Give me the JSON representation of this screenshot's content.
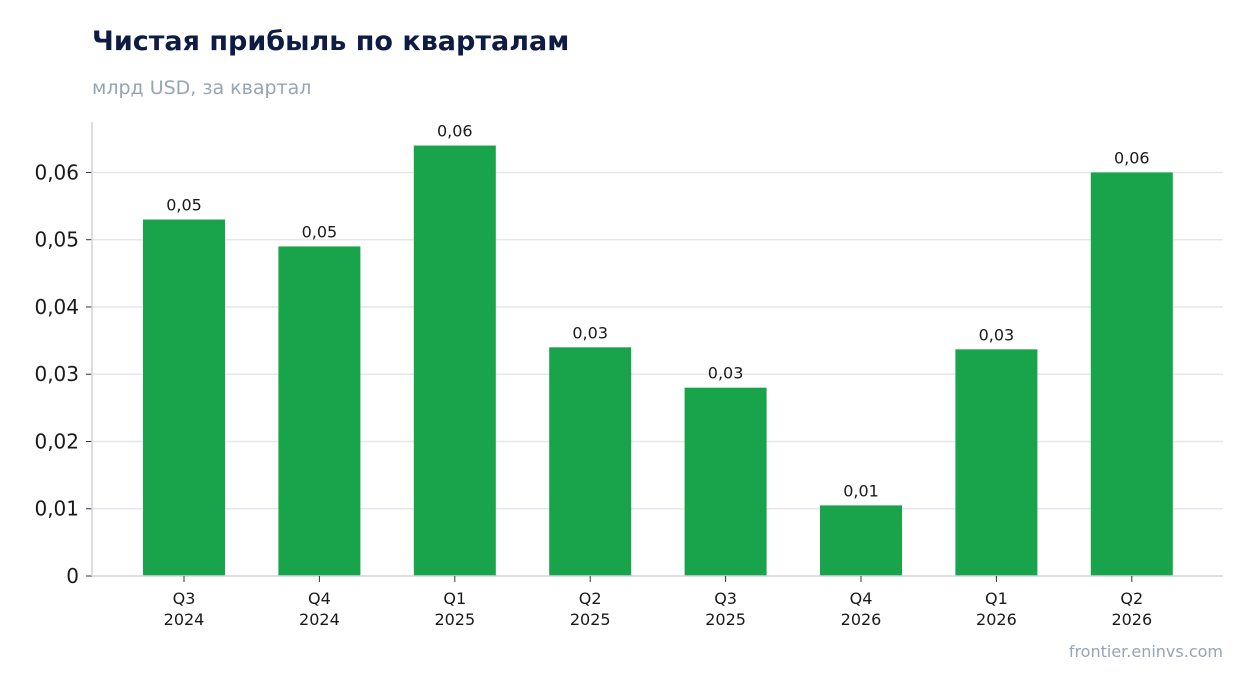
{
  "header": {
    "title": "Чистая прибыль по кварталам",
    "subtitle": "млрд USD, за квартал"
  },
  "footer": {
    "source": "frontier.eninvs.com"
  },
  "colors": {
    "bar": "#19a34a",
    "grid": "#e4e7ec",
    "axis": "#cfd4dc",
    "title": "#0d1b45",
    "muted": "#97a4b6"
  },
  "chart_data": {
    "type": "bar",
    "categories": [
      [
        "Q3",
        "2024"
      ],
      [
        "Q4",
        "2024"
      ],
      [
        "Q1",
        "2025"
      ],
      [
        "Q2",
        "2025"
      ],
      [
        "Q3",
        "2025"
      ],
      [
        "Q4",
        "2026"
      ],
      [
        "Q1",
        "2026"
      ],
      [
        "Q2",
        "2026"
      ]
    ],
    "values": [
      0.053,
      0.049,
      0.064,
      0.034,
      0.028,
      0.0105,
      0.0337,
      0.06
    ],
    "data_labels": [
      "0,05",
      "0,05",
      "0,06",
      "0,03",
      "0,03",
      "0,01",
      "0,03",
      "0,06"
    ],
    "title": "Чистая прибыль по кварталам",
    "subtitle": "млрд USD, за квартал",
    "xlabel": "",
    "ylabel": "",
    "ylim": [
      0,
      0.0675
    ],
    "yticks": [
      0,
      0.01,
      0.02,
      0.03,
      0.04,
      0.05,
      0.06
    ],
    "ytick_labels": [
      "0",
      "0,01",
      "0,02",
      "0,03",
      "0,04",
      "0,05",
      "0,06"
    ],
    "grid": true,
    "legend": "none"
  }
}
